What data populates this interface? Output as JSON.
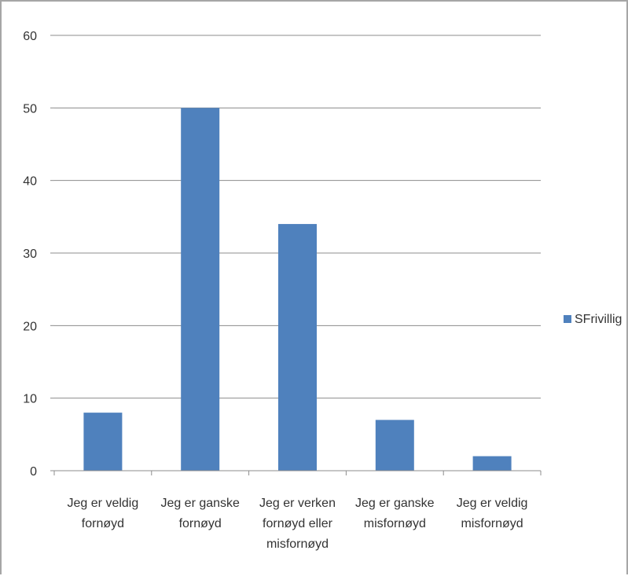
{
  "chart_data": {
    "type": "bar",
    "categories": [
      [
        "Jeg er veldig",
        "fornøyd"
      ],
      [
        "Jeg er ganske",
        "fornøyd"
      ],
      [
        "Jeg er verken",
        "fornøyd eller",
        "misfornøyd"
      ],
      [
        "Jeg er ganske",
        "misfornøyd"
      ],
      [
        "Jeg er veldig",
        "misfornøyd"
      ]
    ],
    "series": [
      {
        "name": "SFrivillig",
        "values": [
          8,
          50,
          34,
          7,
          2
        ],
        "color": "#4f81bd"
      }
    ],
    "y_ticks": [
      "0",
      "10",
      "20",
      "30",
      "40",
      "50",
      "60"
    ],
    "ylim": [
      0,
      60
    ],
    "grid": true,
    "legend_position": "right"
  }
}
